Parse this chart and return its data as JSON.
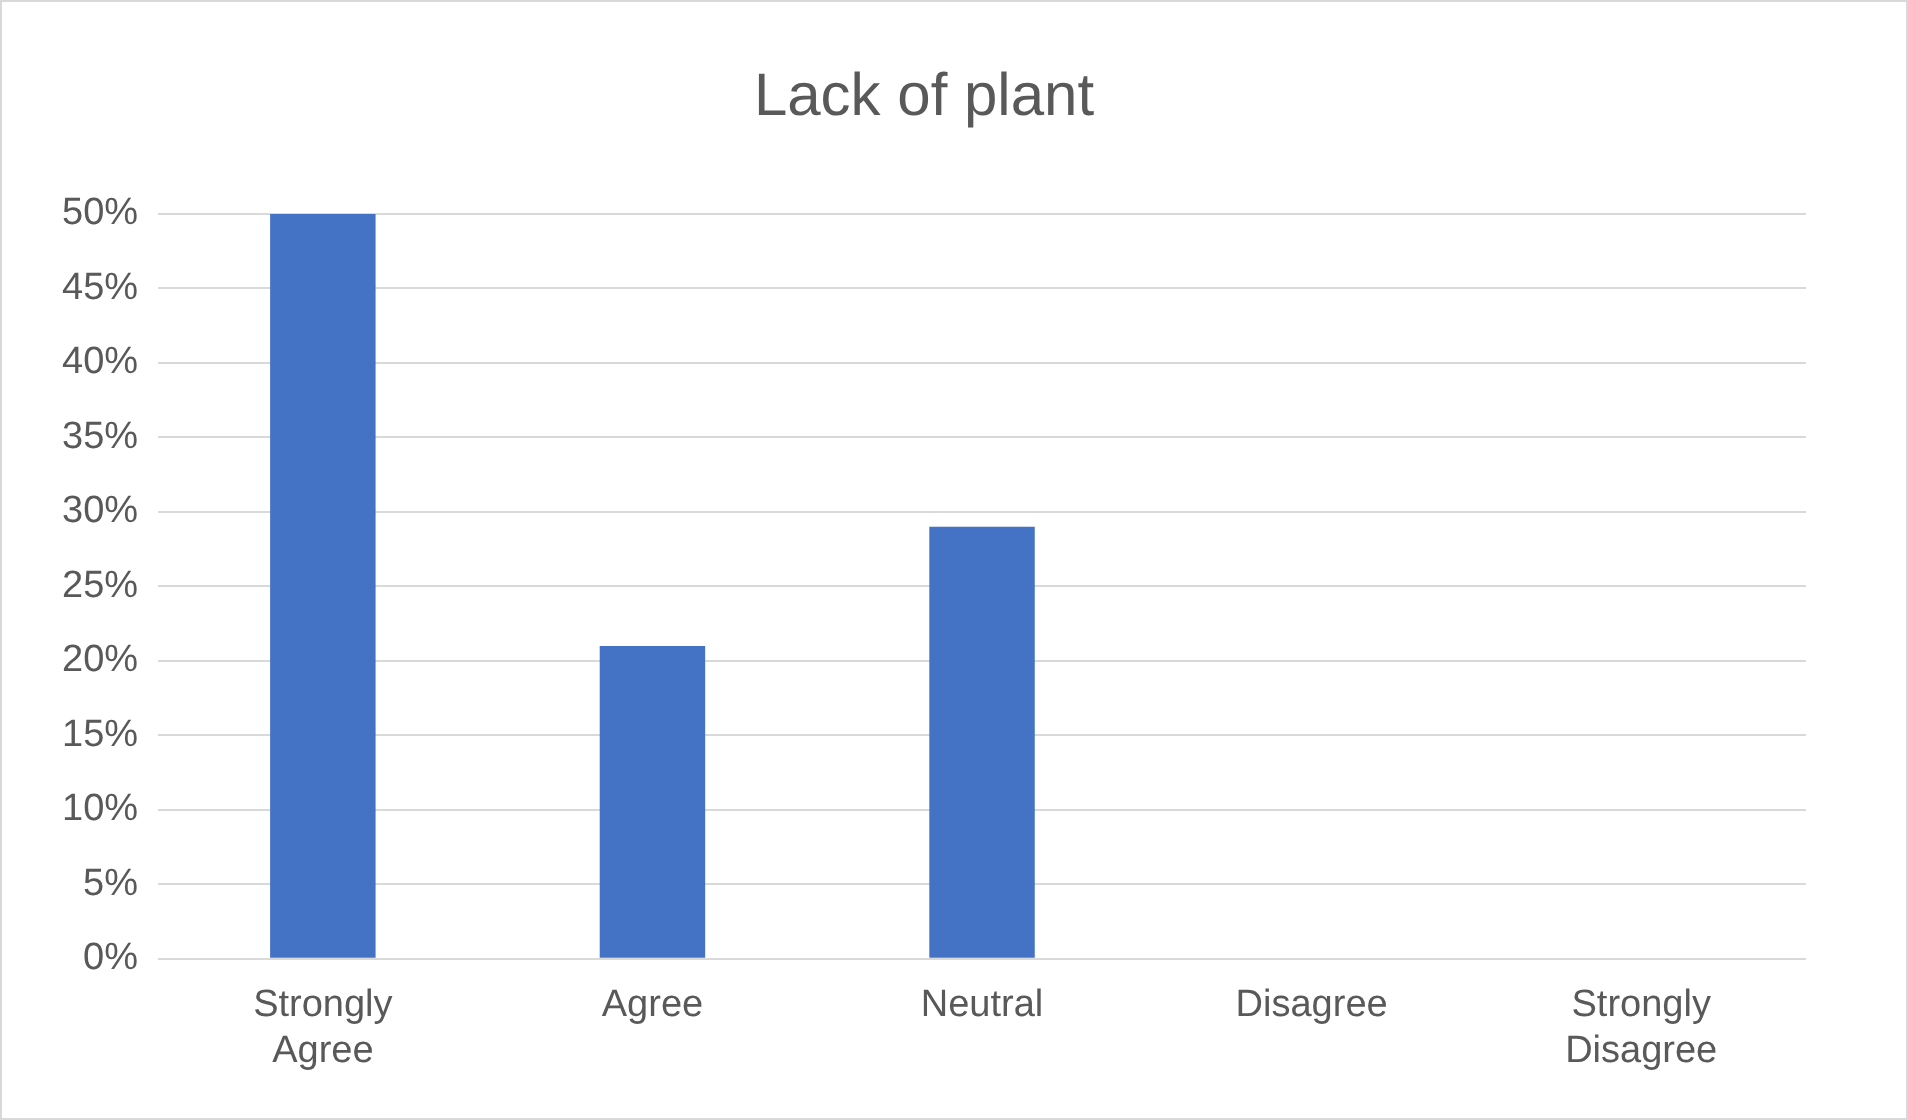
{
  "chart_data": {
    "type": "bar",
    "title": "Lack of plant",
    "categories": [
      "Strongly Agree",
      "Agree",
      "Neutral",
      "Disagree",
      "Strongly Disagree"
    ],
    "values": [
      50,
      21,
      29,
      0,
      0
    ],
    "color": "#4472c4",
    "ylim": [
      0,
      50
    ],
    "yticks": [
      {
        "value": 0,
        "label": "0%"
      },
      {
        "value": 5,
        "label": "5%"
      },
      {
        "value": 10,
        "label": "10%"
      },
      {
        "value": 15,
        "label": "15%"
      },
      {
        "value": 20,
        "label": "20%"
      },
      {
        "value": 25,
        "label": "25%"
      },
      {
        "value": 30,
        "label": "30%"
      },
      {
        "value": 35,
        "label": "35%"
      },
      {
        "value": 40,
        "label": "40%"
      },
      {
        "value": 45,
        "label": "45%"
      },
      {
        "value": 50,
        "label": "50%"
      }
    ],
    "grid": "y"
  }
}
